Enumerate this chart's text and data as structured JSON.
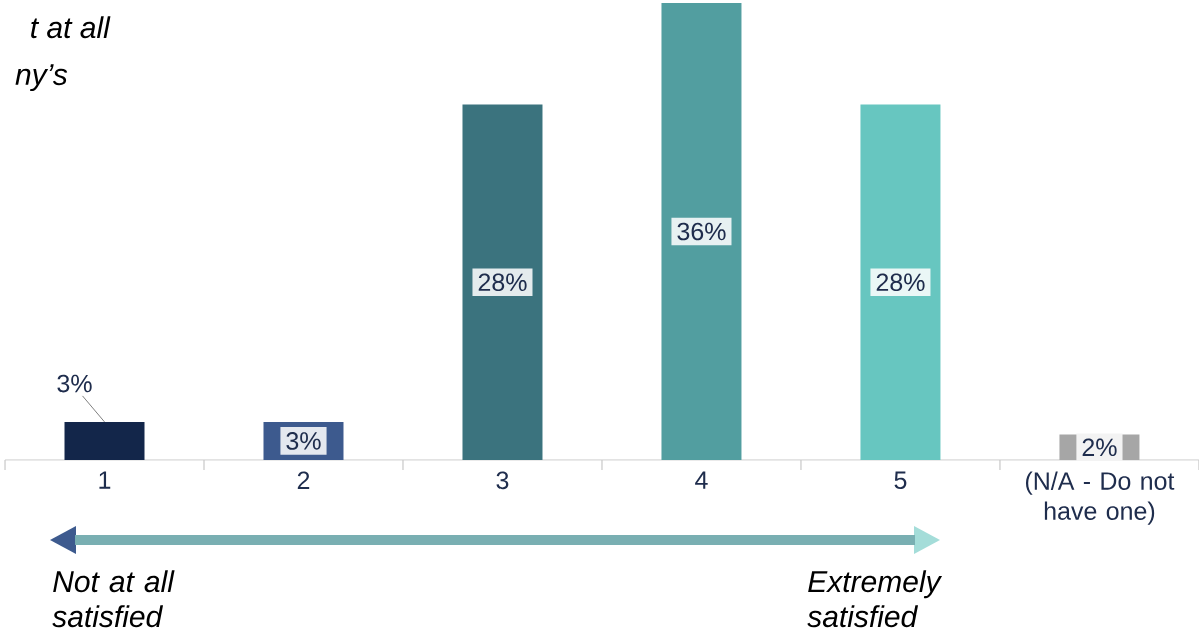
{
  "chart_data": {
    "type": "bar",
    "categories": [
      "1",
      "2",
      "3",
      "4",
      "5",
      "(N/A - Do not have one)"
    ],
    "values": [
      3,
      3,
      28,
      36,
      28,
      2
    ],
    "colors": [
      "#13264a",
      "#3d5a8e",
      "#3b737e",
      "#529ea0",
      "#67c6c0",
      "#a6a6a6"
    ],
    "value_labels": [
      null,
      "3%",
      "28%",
      "36%",
      "28%",
      "2%"
    ],
    "annotations": [
      {
        "text": "3%",
        "x": "1",
        "y": 3
      },
      "t at all",
      "ny’s",
      "*Not at all satisfied*",
      "*Extremely satisfied*"
    ]
  }
}
